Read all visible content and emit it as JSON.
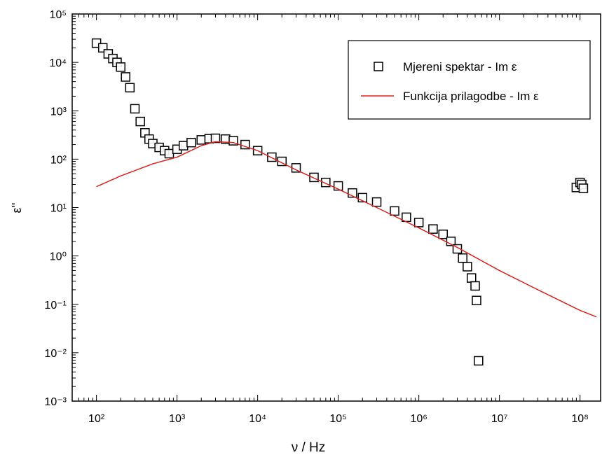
{
  "chart_data": {
    "type": "scatter",
    "xlabel": "ν / Hz",
    "ylabel": "ε''",
    "xscale": "log",
    "yscale": "log",
    "xlim": [
      50,
      180000000
    ],
    "ylim": [
      0.001,
      100000
    ],
    "xticks": [
      {
        "value": 100,
        "label": "10²"
      },
      {
        "value": 1000,
        "label": "10³"
      },
      {
        "value": 10000,
        "label": "10⁴"
      },
      {
        "value": 100000,
        "label": "10⁵"
      },
      {
        "value": 1000000,
        "label": "10⁶"
      },
      {
        "value": 10000000,
        "label": "10⁷"
      },
      {
        "value": 100000000,
        "label": "10⁸"
      }
    ],
    "yticks": [
      {
        "value": 0.001,
        "label": "10⁻³"
      },
      {
        "value": 0.01,
        "label": "10⁻²"
      },
      {
        "value": 0.1,
        "label": "10⁻¹"
      },
      {
        "value": 1,
        "label": "10⁰"
      },
      {
        "value": 10,
        "label": "10¹"
      },
      {
        "value": 100,
        "label": "10²"
      },
      {
        "value": 1000,
        "label": "10³"
      },
      {
        "value": 10000,
        "label": "10⁴"
      },
      {
        "value": 100000,
        "label": "10⁵"
      }
    ],
    "legend": "upper right",
    "series": [
      {
        "name": "Mjereni spektar - Im ε",
        "type": "scatter",
        "marker": "square",
        "color": "#000000",
        "x": [
          100,
          120,
          140,
          160,
          180,
          200,
          230,
          260,
          300,
          350,
          400,
          450,
          500,
          600,
          700,
          800,
          1000,
          1200,
          1500,
          2000,
          2500,
          3000,
          4000,
          5000,
          7000,
          10000,
          15000,
          20000,
          30000,
          50000,
          70000,
          100000,
          150000,
          200000,
          300000,
          500000,
          700000,
          1000000,
          1500000,
          2000000,
          2500000,
          3000000,
          3500000,
          4000000,
          4500000,
          5000000,
          5200000,
          5500000,
          90000000,
          100000000,
          105000000,
          110000000
        ],
        "values": [
          25000,
          20000,
          15000,
          12000,
          10000,
          8000,
          5000,
          3000,
          1100,
          600,
          350,
          260,
          210,
          175,
          150,
          130,
          160,
          190,
          220,
          250,
          265,
          270,
          260,
          240,
          200,
          150,
          110,
          90,
          66,
          42,
          33,
          28,
          20,
          16,
          13,
          8.5,
          6.3,
          4.9,
          3.6,
          2.8,
          2,
          1.4,
          0.9,
          0.6,
          0.35,
          0.24,
          0.12,
          0.0068,
          26,
          33,
          30,
          25
        ]
      },
      {
        "name": "Funkcija prilagodbe - Im ε",
        "type": "line",
        "color": "#e0201f",
        "x": [
          100,
          200,
          500,
          1000,
          2000,
          3000,
          5000,
          10000,
          30000,
          100000,
          300000,
          1000000,
          3000000,
          10000000,
          30000000,
          100000000,
          160000000
        ],
        "values": [
          27,
          45,
          80,
          110,
          190,
          230,
          220,
          150,
          60,
          24,
          10,
          3.8,
          1.5,
          0.5,
          0.2,
          0.075,
          0.055
        ]
      }
    ]
  }
}
